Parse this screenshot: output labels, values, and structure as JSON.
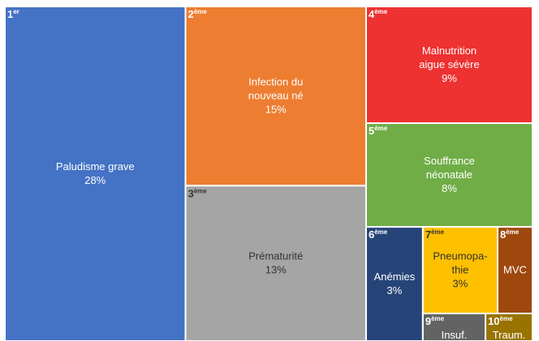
{
  "chart_data": {
    "type": "treemap",
    "items": [
      {
        "rank": "1",
        "suffix": "er",
        "label": [
          "Paludisme grave"
        ],
        "value": 28,
        "value_label": "28%",
        "color": "#4472c4",
        "text_color": "#ffffff"
      },
      {
        "rank": "2",
        "suffix": "ème",
        "label": [
          "Infection du",
          "nouveau né"
        ],
        "value": 15,
        "value_label": "15%",
        "color": "#ed7d31",
        "text_color": "#ffffff"
      },
      {
        "rank": "3",
        "suffix": "ème",
        "label": [
          "Prématurité"
        ],
        "value": 13,
        "value_label": "13%",
        "color": "#a5a5a5",
        "text_color": "#333333"
      },
      {
        "rank": "4",
        "suffix": "ème",
        "label": [
          "Malnutrition",
          "aigue sévère"
        ],
        "value": 9,
        "value_label": "9%",
        "color": "#ee3131",
        "text_color": "#ffffff"
      },
      {
        "rank": "5",
        "suffix": "ème",
        "label": [
          "Souffrance",
          "néonatale"
        ],
        "value": 8,
        "value_label": "8%",
        "color": "#70ad47",
        "text_color": "#ffffff"
      },
      {
        "rank": "6",
        "suffix": "ème",
        "label": [
          "Anémies"
        ],
        "value": 3,
        "value_label": "3%",
        "color": "#264478",
        "text_color": "#ffffff"
      },
      {
        "rank": "7",
        "suffix": "ème",
        "label": [
          "Pneumopa-",
          "thie"
        ],
        "value": 3,
        "value_label": "3%",
        "color": "#ffc000",
        "text_color": "#333333"
      },
      {
        "rank": "8",
        "suffix": "ème",
        "label": [
          "MVC"
        ],
        "value": 1.4,
        "value_label": null,
        "color": "#9e480e",
        "text_color": "#ffffff"
      },
      {
        "rank": "9",
        "suffix": "ème",
        "label": [
          "Insuf."
        ],
        "value": 0.8,
        "value_label": null,
        "color": "#636363",
        "text_color": "#ffffff"
      },
      {
        "rank": "10",
        "suffix": "ème",
        "label": [
          "Traum."
        ],
        "value": 0.6,
        "value_label": null,
        "color": "#997300",
        "text_color": "#ffffff"
      }
    ]
  }
}
